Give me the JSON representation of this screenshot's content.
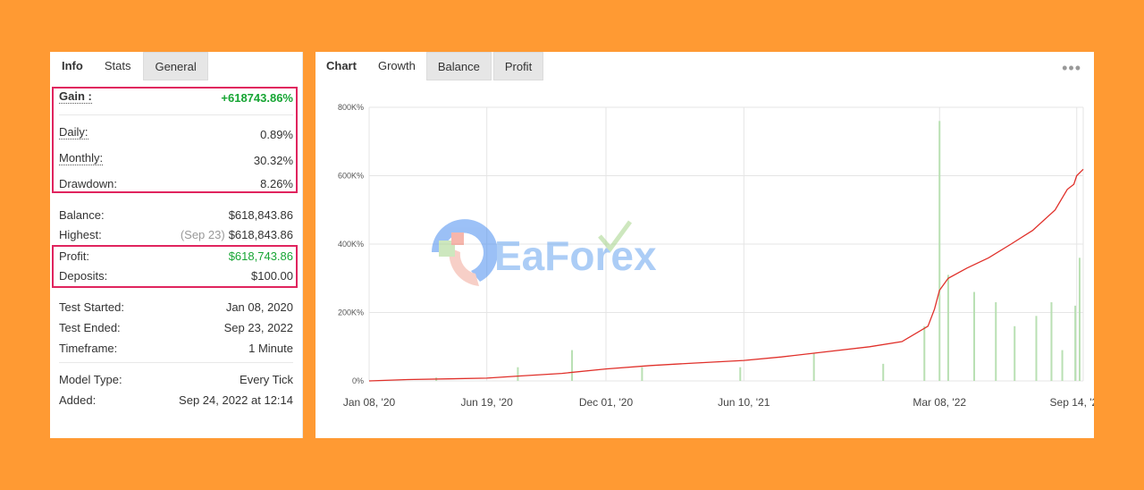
{
  "left": {
    "tabs": [
      "Info",
      "Stats",
      "General"
    ],
    "rows": {
      "gain": {
        "label": "Gain :",
        "value": "+618743.86%"
      },
      "daily": {
        "label": "Daily:",
        "value": "0.89%"
      },
      "monthly": {
        "label": "Monthly:",
        "value": "30.32%"
      },
      "drawdown": {
        "label": "Drawdown:",
        "value": "8.26%"
      },
      "balance": {
        "label": "Balance:",
        "value": "$618,843.86"
      },
      "highest": {
        "label": "Highest:",
        "note": "(Sep 23)",
        "value": "$618,843.86"
      },
      "profit": {
        "label": "Profit:",
        "value": "$618,743.86"
      },
      "deposits": {
        "label": "Deposits:",
        "value": "$100.00"
      },
      "test_started": {
        "label": "Test Started:",
        "value": "Jan 08, 2020"
      },
      "test_ended": {
        "label": "Test Ended:",
        "value": "Sep 23, 2022"
      },
      "timeframe": {
        "label": "Timeframe:",
        "value": "1 Minute"
      },
      "model_type": {
        "label": "Model Type:",
        "value": "Every Tick"
      },
      "added": {
        "label": "Added:",
        "value": "Sep 24, 2022 at 12:14"
      }
    }
  },
  "right": {
    "tabs": [
      "Chart",
      "Growth",
      "Balance",
      "Profit"
    ],
    "more_icon": "more-dots-icon",
    "watermark": "EaForex"
  },
  "colors": {
    "background": "#FF9A33",
    "gain_green": "#17a534",
    "highlight": "#E0245E",
    "growth_line": "#e0302a",
    "bars": "#b9e0b3"
  },
  "chart_data": {
    "type": "line",
    "title": "",
    "xlabel": "",
    "ylabel": "",
    "x_ticks": [
      "Jan 08, '20",
      "Jun 19, '20",
      "Dec 01, '20",
      "Jun 10, '21",
      "Mar 08, '22",
      "Sep 14, '22"
    ],
    "y_ticks": [
      "0%",
      "200K%",
      "400K%",
      "600K%",
      "800K%"
    ],
    "ylim": [
      0,
      800000
    ],
    "grid": true,
    "series": [
      {
        "type": "line",
        "color": "#e0302a",
        "x": [
          "2020-01-08",
          "2020-03-01",
          "2020-06-19",
          "2020-08-01",
          "2020-10-01",
          "2020-12-01",
          "2021-02-01",
          "2021-04-01",
          "2021-06-10",
          "2021-08-01",
          "2021-10-01",
          "2021-12-01",
          "2022-01-15",
          "2022-02-20",
          "2022-03-01",
          "2022-03-08",
          "2022-03-20",
          "2022-04-15",
          "2022-05-15",
          "2022-06-15",
          "2022-07-15",
          "2022-08-15",
          "2022-09-01",
          "2022-09-10",
          "2022-09-14",
          "2022-09-23"
        ],
        "y": [
          0,
          4000,
          8000,
          14000,
          22000,
          35000,
          45000,
          52000,
          60000,
          70000,
          85000,
          100000,
          115000,
          160000,
          210000,
          265000,
          300000,
          330000,
          360000,
          400000,
          440000,
          500000,
          560000,
          575000,
          600000,
          618743.86
        ]
      },
      {
        "type": "bar",
        "color": "#b9e0b3",
        "note": "daily profit spikes",
        "x": [
          "2020-04-10",
          "2020-08-01",
          "2020-10-15",
          "2021-01-20",
          "2021-06-05",
          "2021-09-15",
          "2021-12-20",
          "2022-02-15",
          "2022-03-08",
          "2022-03-20",
          "2022-04-25",
          "2022-05-25",
          "2022-06-20",
          "2022-07-20",
          "2022-08-10",
          "2022-08-25",
          "2022-09-12",
          "2022-09-18"
        ],
        "y": [
          10000,
          40000,
          90000,
          40000,
          40000,
          80000,
          50000,
          160000,
          760000,
          310000,
          260000,
          230000,
          160000,
          190000,
          230000,
          90000,
          220000,
          360000
        ]
      }
    ]
  }
}
